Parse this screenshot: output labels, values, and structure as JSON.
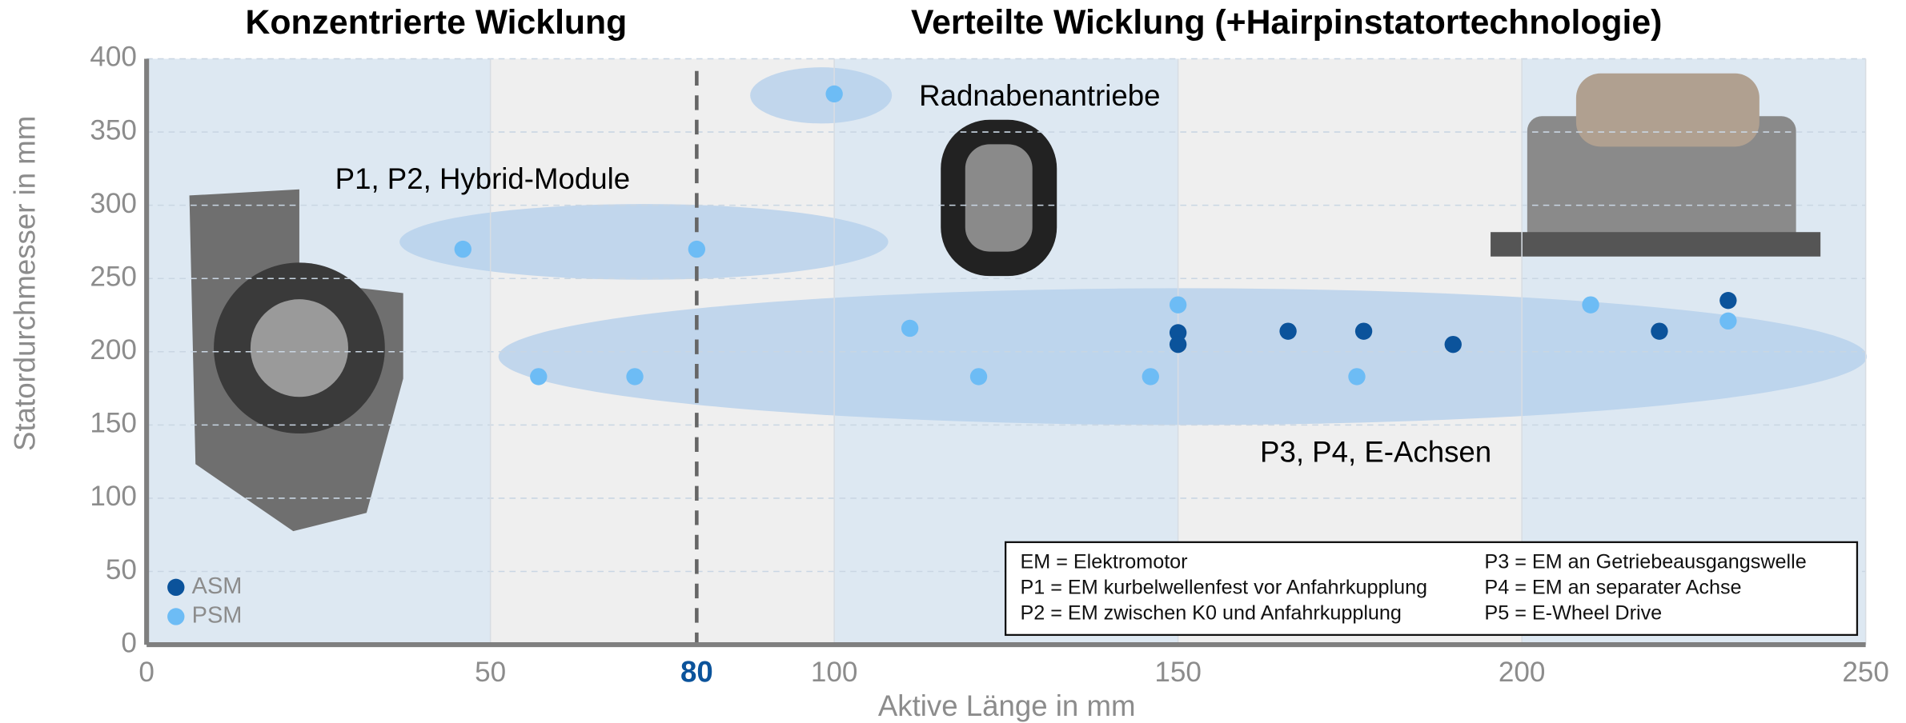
{
  "chart_data": {
    "type": "scatter",
    "section_titles": [
      "Konzentrierte Wicklung",
      "Verteilte Wicklung (+Hairpinstatortechnologie)"
    ],
    "xlabel": "Aktive Länge in mm",
    "ylabel": "Statordurchmesser in mm",
    "xlim": [
      0,
      250
    ],
    "ylim": [
      0,
      400
    ],
    "xticks": [
      0,
      50,
      100,
      150,
      200,
      250
    ],
    "yticks": [
      0,
      50,
      100,
      150,
      200,
      250,
      300,
      350,
      400
    ],
    "grid": true,
    "reference_line": 80,
    "annotations": [
      "P1, P2, Hybrid-Module",
      "Radnabenantriebe",
      "P3, P4, E-Achsen"
    ],
    "notes": [
      [
        "EM = Elektromotor",
        "P1 = EM kurbelwellenfest vor Anfahrkupplung",
        "P2 = EM zwischen K0 und Anfahrkupplung"
      ],
      [
        "P3 = EM an Getriebeausgangswelle",
        "P4 = EM an separater Achse",
        "P5 = E-Wheel Drive"
      ]
    ],
    "legend_position": "lower left",
    "series": [
      {
        "name": "ASM",
        "color": "#0b539b",
        "x": [
          150,
          150,
          166,
          177,
          190,
          220,
          230
        ],
        "values": [
          213,
          205,
          214,
          214,
          205,
          214,
          235
        ]
      },
      {
        "name": "PSM",
        "color": "#6dbcf5",
        "x": [
          46,
          80,
          57,
          71,
          100,
          111,
          121,
          146,
          150,
          176,
          210,
          230
        ],
        "values": [
          270,
          270,
          183,
          183,
          376,
          216,
          183,
          183,
          232,
          183,
          232,
          221
        ]
      }
    ]
  }
}
